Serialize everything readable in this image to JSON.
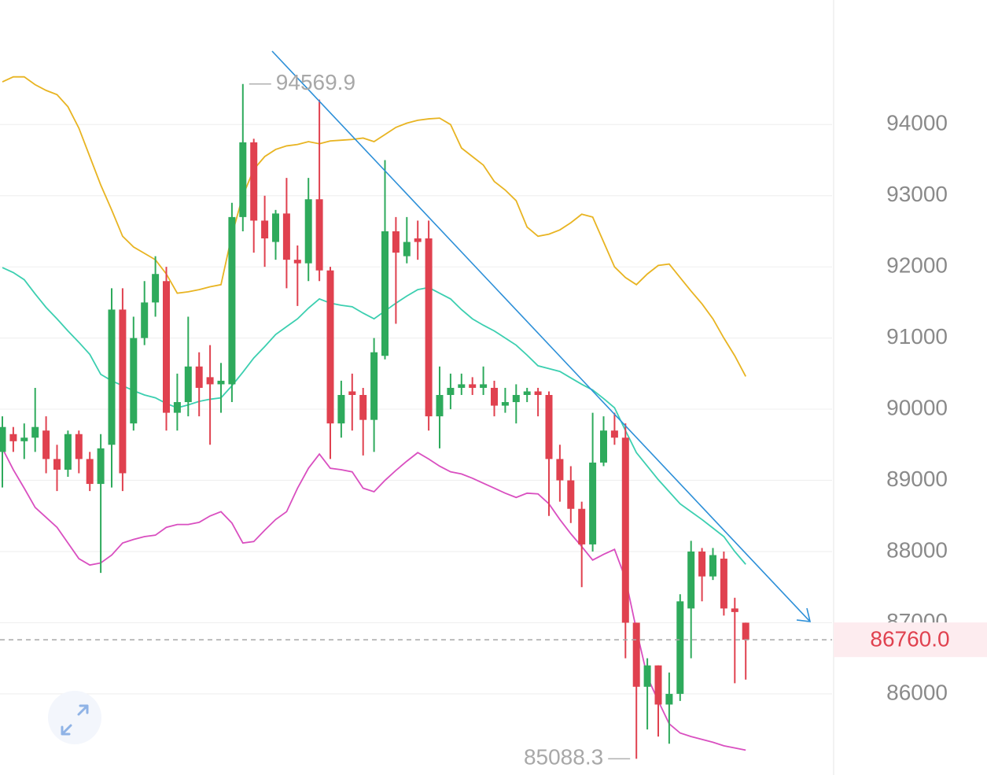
{
  "chart_data": {
    "type": "candlestick",
    "open": [
      89400,
      89650,
      89550,
      89600,
      89700,
      89300,
      89150,
      89650,
      89300,
      88950,
      89500,
      91400,
      89800,
      91000,
      91500,
      91800,
      89950,
      90100,
      90600,
      90450,
      90350,
      90350,
      92700,
      93750,
      92650,
      92350,
      92750,
      92100,
      92050,
      92950,
      91950,
      89800,
      90250,
      90200,
      89850,
      90750,
      92500,
      92150,
      92400,
      92400,
      89900,
      90200,
      90300,
      90350,
      90300,
      90300,
      90050,
      90100,
      90200,
      90250,
      90200,
      89300,
      89000,
      88600,
      88100,
      89250,
      89700,
      89600,
      87000,
      86100,
      86400,
      85850,
      86000,
      87200,
      88000,
      87650,
      87900,
      87200,
      87000
    ],
    "high": [
      89900,
      89750,
      89800,
      90300,
      89900,
      89500,
      89700,
      89700,
      89400,
      89650,
      91700,
      91700,
      91300,
      91800,
      92150,
      92000,
      90500,
      91300,
      90800,
      90900,
      90650,
      92900,
      94569.9,
      93800,
      93000,
      92800,
      93250,
      92300,
      93250,
      94350,
      92000,
      90400,
      90500,
      90300,
      91000,
      93500,
      92700,
      92700,
      92650,
      92650,
      90600,
      90500,
      90500,
      90450,
      90600,
      90400,
      90300,
      90350,
      90300,
      90300,
      90250,
      89500,
      89200,
      88700,
      89950,
      89900,
      89950,
      89800,
      87000,
      86500,
      86400,
      86300,
      87400,
      88150,
      88050,
      88050,
      88000,
      87350,
      87000
    ],
    "low": [
      88900,
      89400,
      89300,
      89400,
      89100,
      88850,
      89050,
      89100,
      88850,
      87700,
      88900,
      88850,
      89700,
      90900,
      91300,
      89700,
      89700,
      89900,
      89900,
      89500,
      89950,
      90100,
      92500,
      92200,
      92000,
      92100,
      91700,
      91450,
      91800,
      91800,
      89300,
      89600,
      89700,
      89350,
      89400,
      90700,
      91200,
      92050,
      92100,
      89700,
      89450,
      90000,
      90200,
      90200,
      90200,
      89900,
      89950,
      89800,
      90100,
      89900,
      88500,
      88700,
      88400,
      87500,
      88000,
      89200,
      89500,
      86500,
      85088.3,
      85500,
      85400,
      85300,
      85900,
      86500,
      87300,
      87600,
      87100,
      86150,
      86200
    ],
    "close": [
      89750,
      89550,
      89600,
      89750,
      89300,
      89150,
      89650,
      89300,
      88950,
      89450,
      91400,
      89100,
      91000,
      91500,
      91900,
      89950,
      90100,
      90600,
      90300,
      90350,
      90400,
      92700,
      93750,
      92650,
      92400,
      92750,
      92100,
      92050,
      92950,
      91950,
      89800,
      90200,
      90200,
      89850,
      90800,
      92500,
      92200,
      92350,
      92350,
      89900,
      90200,
      90300,
      90350,
      90300,
      90350,
      90050,
      90100,
      90200,
      90250,
      90200,
      89300,
      89000,
      88600,
      88100,
      89250,
      89700,
      89600,
      87000,
      86100,
      86400,
      85850,
      86000,
      87300,
      88000,
      87650,
      87950,
      87200,
      87150,
      86760
    ],
    "up_color": "#2eaa5c",
    "down_color": "#e0414f",
    "bands": [
      {
        "color": "#e8b422",
        "values": [
          94600,
          94670,
          94670,
          94560,
          94480,
          94420,
          94250,
          93950,
          93550,
          93150,
          92800,
          92430,
          92280,
          92190,
          92100,
          91900,
          91630,
          91650,
          91680,
          91720,
          91750,
          92450,
          93000,
          93370,
          93550,
          93650,
          93700,
          93720,
          93760,
          93730,
          93770,
          93780,
          93790,
          93810,
          93760,
          93860,
          93960,
          94020,
          94060,
          94080,
          94090,
          94000,
          93670,
          93550,
          93430,
          93200,
          93080,
          92930,
          92560,
          92430,
          92460,
          92520,
          92620,
          92740,
          92700,
          92350,
          92000,
          91850,
          91750,
          91900,
          92020,
          92040,
          91850,
          91660,
          91480,
          91270,
          91000,
          90750,
          90460
        ]
      },
      {
        "color": "#3ccfb0",
        "values": [
          91990,
          91920,
          91820,
          91620,
          91430,
          91270,
          91100,
          90940,
          90770,
          90490,
          90400,
          90330,
          90260,
          90200,
          90160,
          90080,
          90020,
          90060,
          90110,
          90140,
          90160,
          90330,
          90520,
          90720,
          90880,
          91050,
          91160,
          91270,
          91420,
          91550,
          91490,
          91460,
          91440,
          91350,
          91270,
          91380,
          91490,
          91590,
          91680,
          91710,
          91630,
          91550,
          91400,
          91270,
          91180,
          91100,
          91000,
          90900,
          90760,
          90610,
          90570,
          90530,
          90440,
          90350,
          90270,
          90150,
          90020,
          89700,
          89390,
          89200,
          89010,
          88840,
          88670,
          88560,
          88450,
          88330,
          88210,
          88000,
          87820
        ]
      },
      {
        "color": "#d94fc0",
        "values": [
          89450,
          89150,
          88890,
          88620,
          88480,
          88340,
          88120,
          87900,
          87810,
          87840,
          87950,
          88120,
          88170,
          88210,
          88230,
          88340,
          88380,
          88380,
          88410,
          88500,
          88560,
          88400,
          88120,
          88140,
          88300,
          88450,
          88560,
          88890,
          89170,
          89370,
          89170,
          89150,
          89120,
          88890,
          88840,
          89000,
          89140,
          89270,
          89390,
          89300,
          89200,
          89120,
          89090,
          89030,
          88960,
          88890,
          88820,
          88760,
          88820,
          88810,
          88670,
          88450,
          88250,
          88070,
          87880,
          87960,
          88030,
          87620,
          86900,
          86240,
          85900,
          85580,
          85450,
          85400,
          85360,
          85320,
          85270,
          85240,
          85210
        ]
      }
    ],
    "ylim": [
      84860,
      95750
    ],
    "yticks": [
      86000,
      87000,
      88000,
      89000,
      90000,
      91000,
      92000,
      93000,
      94000
    ],
    "grid": true,
    "high_label": 94569.9,
    "low_label": 85088.3,
    "last_price": {
      "value": 86760,
      "label": "86760.0"
    }
  }
}
